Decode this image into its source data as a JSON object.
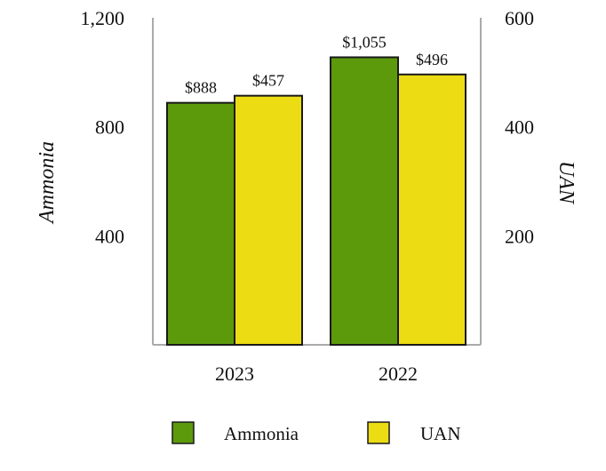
{
  "chart_data": {
    "type": "bar",
    "categories": [
      "2023",
      "2022"
    ],
    "series": [
      {
        "name": "Ammonia",
        "axis": "left",
        "color": "#5c9a0c",
        "values": [
          888,
          1055
        ],
        "labels": [
          "$888",
          "$1,055"
        ]
      },
      {
        "name": "UAN",
        "axis": "right",
        "color": "#ecdc14",
        "values": [
          457,
          496
        ],
        "labels": [
          "$457",
          "$496"
        ]
      }
    ],
    "left_axis": {
      "label": "Ammonia",
      "ticks": [
        400,
        800,
        1200
      ],
      "tick_labels": [
        "400",
        "800",
        "1,200"
      ],
      "range": [
        0,
        1200
      ]
    },
    "right_axis": {
      "label": "UAN",
      "ticks": [
        200,
        400,
        600
      ],
      "tick_labels": [
        "200",
        "400",
        "600"
      ],
      "range": [
        0,
        600
      ]
    },
    "legend_position": "bottom",
    "grid": false
  }
}
